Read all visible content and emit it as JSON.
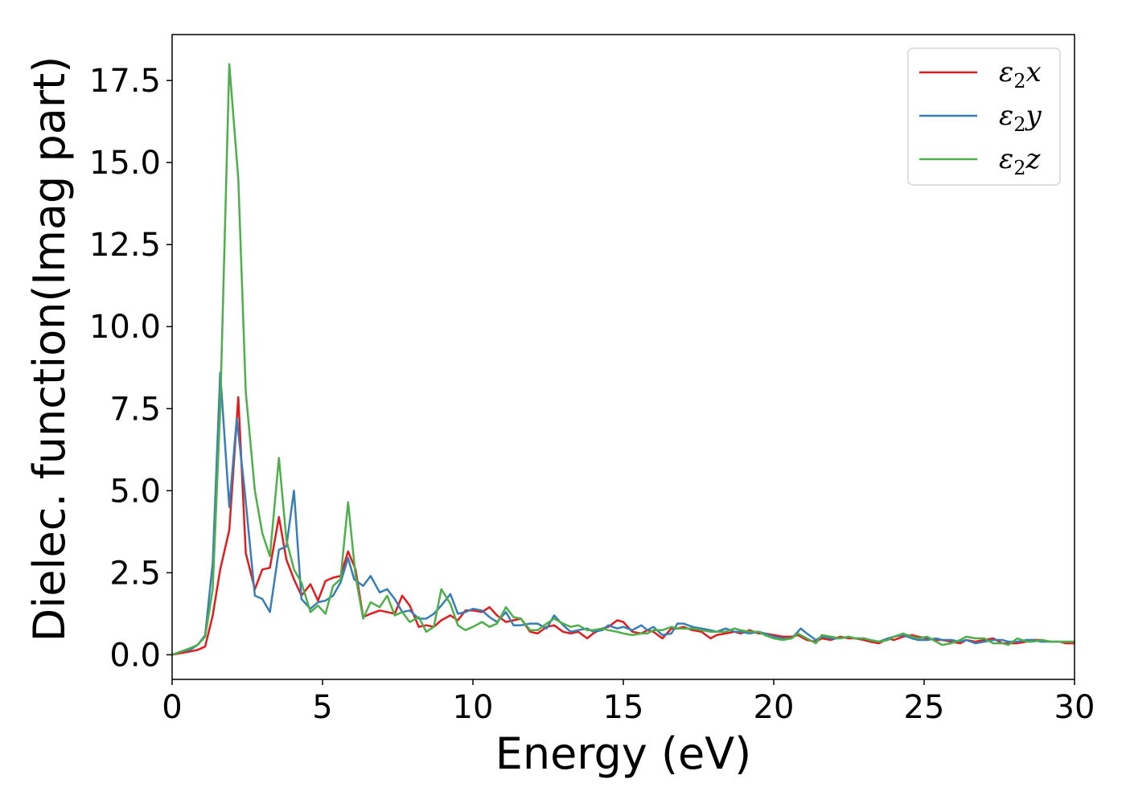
{
  "chart_data": {
    "type": "line",
    "title": "",
    "xlabel": "Energy (eV)",
    "ylabel": "Dielec. function(Imag part)",
    "xlim": [
      0,
      30
    ],
    "ylim": [
      -0.75,
      18.9
    ],
    "xticks": [
      0,
      5,
      10,
      15,
      20,
      25,
      30
    ],
    "xtick_labels": [
      "0",
      "5",
      "10",
      "15",
      "20",
      "25",
      "30"
    ],
    "yticks": [
      0.0,
      2.5,
      5.0,
      7.5,
      10.0,
      12.5,
      15.0,
      17.5
    ],
    "ytick_labels": [
      "0.0",
      "2.5",
      "5.0",
      "7.5",
      "10.0",
      "12.5",
      "15.0",
      "17.5"
    ],
    "grid": false,
    "legend_position": "top-right",
    "series": [
      {
        "name": "ε2x",
        "color": "#e41a1c",
        "x": [
          0.0,
          0.3,
          0.6,
          0.85,
          1.1,
          1.35,
          1.6,
          1.9,
          2.2,
          2.45,
          2.75,
          3.0,
          3.25,
          3.55,
          3.8,
          4.05,
          4.3,
          4.6,
          4.85,
          5.1,
          5.35,
          5.6,
          5.85,
          6.1,
          6.35,
          6.6,
          6.9,
          7.15,
          7.4,
          7.65,
          7.9,
          8.2,
          8.45,
          8.7,
          8.95,
          9.25,
          9.5,
          9.75,
          10.0,
          10.3,
          10.55,
          10.8,
          11.1,
          11.35,
          11.6,
          11.9,
          12.15,
          12.45,
          12.7,
          13.0,
          13.25,
          13.5,
          13.8,
          14.0,
          14.3,
          14.5,
          14.8,
          15.0,
          15.3,
          15.6,
          15.8,
          16.0,
          16.3,
          16.6,
          16.8,
          17.0,
          17.3,
          17.6,
          17.9,
          18.1,
          18.4,
          18.7,
          18.9,
          19.2,
          19.5,
          19.7,
          20.0,
          20.3,
          20.6,
          20.8,
          21.1,
          21.4,
          21.6,
          21.9,
          22.2,
          22.5,
          22.7,
          23.0,
          23.2,
          23.5,
          23.8,
          24.0,
          24.3,
          24.6,
          24.8,
          25.1,
          25.4,
          25.6,
          25.9,
          26.2,
          26.4,
          26.7,
          27.0,
          27.3,
          27.6,
          27.8,
          28.1,
          28.4,
          28.6,
          28.9,
          29.2,
          29.5,
          29.7,
          30.0
        ],
        "values": [
          0.0,
          0.05,
          0.1,
          0.15,
          0.25,
          1.2,
          2.6,
          3.8,
          7.85,
          3.1,
          2.0,
          2.6,
          2.65,
          4.2,
          2.9,
          2.3,
          1.8,
          2.15,
          1.65,
          2.25,
          2.35,
          2.4,
          3.15,
          2.6,
          1.15,
          1.25,
          1.35,
          1.3,
          1.25,
          1.8,
          1.5,
          0.85,
          0.9,
          0.85,
          1.05,
          1.2,
          1.05,
          1.35,
          1.35,
          1.3,
          1.45,
          1.2,
          1.0,
          1.05,
          1.1,
          0.7,
          0.65,
          0.85,
          0.9,
          0.7,
          0.65,
          0.7,
          0.5,
          0.65,
          0.8,
          0.85,
          1.05,
          1.0,
          0.7,
          0.65,
          0.75,
          0.7,
          0.5,
          0.8,
          0.8,
          0.85,
          0.75,
          0.7,
          0.5,
          0.6,
          0.65,
          0.7,
          0.65,
          0.75,
          0.65,
          0.65,
          0.6,
          0.55,
          0.55,
          0.6,
          0.45,
          0.4,
          0.5,
          0.45,
          0.55,
          0.5,
          0.5,
          0.45,
          0.4,
          0.35,
          0.5,
          0.45,
          0.55,
          0.6,
          0.55,
          0.5,
          0.45,
          0.45,
          0.4,
          0.35,
          0.45,
          0.4,
          0.45,
          0.5,
          0.35,
          0.35,
          0.35,
          0.4,
          0.45,
          0.45,
          0.4,
          0.4,
          0.35,
          0.35
        ]
      },
      {
        "name": "ε2y",
        "color": "#377eb8",
        "x": [
          0.0,
          0.3,
          0.6,
          0.85,
          1.1,
          1.35,
          1.6,
          1.9,
          2.15,
          2.4,
          2.75,
          3.0,
          3.25,
          3.55,
          3.8,
          4.05,
          4.3,
          4.6,
          4.85,
          5.1,
          5.35,
          5.6,
          5.85,
          6.05,
          6.35,
          6.6,
          6.9,
          7.15,
          7.4,
          7.65,
          7.9,
          8.2,
          8.45,
          8.7,
          8.95,
          9.25,
          9.5,
          9.75,
          10.0,
          10.3,
          10.55,
          10.8,
          11.1,
          11.35,
          11.6,
          11.9,
          12.15,
          12.45,
          12.7,
          13.0,
          13.25,
          13.5,
          13.8,
          14.0,
          14.3,
          14.5,
          14.8,
          15.0,
          15.3,
          15.6,
          15.8,
          16.0,
          16.3,
          16.6,
          16.8,
          17.0,
          17.3,
          17.6,
          17.9,
          18.1,
          18.4,
          18.7,
          18.9,
          19.2,
          19.5,
          19.7,
          20.0,
          20.3,
          20.6,
          20.9,
          21.1,
          21.4,
          21.6,
          21.9,
          22.2,
          22.5,
          22.7,
          23.0,
          23.2,
          23.5,
          23.8,
          24.0,
          24.3,
          24.6,
          24.8,
          25.1,
          25.4,
          25.6,
          25.9,
          26.2,
          26.4,
          26.7,
          27.0,
          27.3,
          27.6,
          27.8,
          28.1,
          28.4,
          28.6,
          28.9,
          29.2,
          29.5,
          29.7,
          30.0
        ],
        "values": [
          0.0,
          0.1,
          0.15,
          0.3,
          0.6,
          2.8,
          8.6,
          4.5,
          7.2,
          5.1,
          1.8,
          1.7,
          1.3,
          3.2,
          3.3,
          5.0,
          1.7,
          1.4,
          1.6,
          1.65,
          1.8,
          2.2,
          2.95,
          2.3,
          2.1,
          2.4,
          1.9,
          2.0,
          1.7,
          1.3,
          1.35,
          1.1,
          1.1,
          1.25,
          1.5,
          1.85,
          1.25,
          1.3,
          1.4,
          1.35,
          1.15,
          1.0,
          1.3,
          0.9,
          0.9,
          0.95,
          0.95,
          0.8,
          1.2,
          0.9,
          0.7,
          0.75,
          0.8,
          0.7,
          0.75,
          0.9,
          0.8,
          0.85,
          0.75,
          0.9,
          0.75,
          0.85,
          0.6,
          0.65,
          0.95,
          0.95,
          0.85,
          0.8,
          0.75,
          0.7,
          0.8,
          0.7,
          0.7,
          0.65,
          0.7,
          0.65,
          0.55,
          0.5,
          0.5,
          0.8,
          0.65,
          0.45,
          0.55,
          0.5,
          0.5,
          0.55,
          0.5,
          0.5,
          0.45,
          0.4,
          0.5,
          0.55,
          0.6,
          0.5,
          0.45,
          0.45,
          0.5,
          0.45,
          0.45,
          0.4,
          0.45,
          0.35,
          0.4,
          0.45,
          0.45,
          0.4,
          0.4,
          0.45,
          0.45,
          0.4,
          0.4,
          0.4,
          0.4,
          0.4
        ]
      },
      {
        "name": "ε2z",
        "color": "#4daf4a",
        "x": [
          0.0,
          0.3,
          0.6,
          0.85,
          1.1,
          1.35,
          1.6,
          1.9,
          2.2,
          2.45,
          2.75,
          3.0,
          3.25,
          3.55,
          3.8,
          4.05,
          4.3,
          4.6,
          4.85,
          5.1,
          5.35,
          5.6,
          5.85,
          6.1,
          6.35,
          6.6,
          6.9,
          7.15,
          7.4,
          7.65,
          7.9,
          8.2,
          8.45,
          8.7,
          8.95,
          9.25,
          9.5,
          9.75,
          10.0,
          10.3,
          10.55,
          10.8,
          11.1,
          11.35,
          11.6,
          11.9,
          12.15,
          12.45,
          12.7,
          13.0,
          13.25,
          13.5,
          13.8,
          14.0,
          14.3,
          14.5,
          14.8,
          15.0,
          15.3,
          15.6,
          15.8,
          16.0,
          16.3,
          16.6,
          16.8,
          17.0,
          17.3,
          17.6,
          17.9,
          18.1,
          18.4,
          18.7,
          18.9,
          19.2,
          19.5,
          19.7,
          20.0,
          20.3,
          20.6,
          20.8,
          21.1,
          21.4,
          21.6,
          21.9,
          22.2,
          22.5,
          22.7,
          23.0,
          23.2,
          23.5,
          23.8,
          24.0,
          24.3,
          24.6,
          24.8,
          25.1,
          25.4,
          25.6,
          25.9,
          26.2,
          26.4,
          26.7,
          27.0,
          27.3,
          27.6,
          27.8,
          28.1,
          28.4,
          28.6,
          28.9,
          29.2,
          29.5,
          29.7,
          30.0
        ],
        "values": [
          0.0,
          0.1,
          0.2,
          0.3,
          0.55,
          2.0,
          7.5,
          18.0,
          14.5,
          8.0,
          5.0,
          3.7,
          3.0,
          6.0,
          3.5,
          2.6,
          2.2,
          1.3,
          1.5,
          1.25,
          2.1,
          2.3,
          4.65,
          2.4,
          1.1,
          1.6,
          1.45,
          1.8,
          1.2,
          1.3,
          1.0,
          1.15,
          0.7,
          0.85,
          2.0,
          1.55,
          0.9,
          0.75,
          0.85,
          1.0,
          0.85,
          0.95,
          1.45,
          1.15,
          1.1,
          0.75,
          0.75,
          0.95,
          1.1,
          0.95,
          0.85,
          0.9,
          0.75,
          0.75,
          0.8,
          0.75,
          0.7,
          0.65,
          0.6,
          0.65,
          0.65,
          0.75,
          0.75,
          0.85,
          0.8,
          0.8,
          0.8,
          0.75,
          0.7,
          0.7,
          0.7,
          0.8,
          0.75,
          0.7,
          0.7,
          0.6,
          0.5,
          0.45,
          0.5,
          0.65,
          0.5,
          0.35,
          0.6,
          0.55,
          0.5,
          0.55,
          0.5,
          0.5,
          0.45,
          0.4,
          0.45,
          0.55,
          0.65,
          0.55,
          0.5,
          0.55,
          0.4,
          0.3,
          0.35,
          0.45,
          0.55,
          0.5,
          0.5,
          0.35,
          0.35,
          0.3,
          0.5,
          0.4,
          0.4,
          0.45,
          0.4,
          0.4,
          0.4,
          0.4
        ]
      }
    ]
  }
}
